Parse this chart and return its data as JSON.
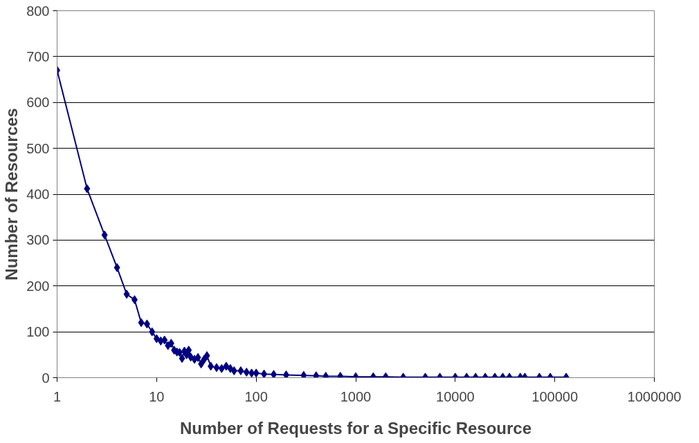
{
  "chart_data": {
    "type": "line",
    "xlabel": "Number of Requests for a Specific Resource",
    "ylabel": "Number of Resources",
    "log": "x",
    "xlim": [
      1,
      1000000
    ],
    "xticks": [
      1,
      10,
      100,
      1000,
      10000,
      100000,
      1000000
    ],
    "ylim": [
      0,
      800
    ],
    "yticks": [
      0,
      100,
      200,
      300,
      400,
      500,
      600,
      700,
      800
    ],
    "grid": "y",
    "marker": "diamond",
    "line_style": "solid",
    "series": [
      {
        "color": "#000080",
        "x": [
          1,
          2,
          3,
          4,
          5,
          6,
          7,
          8,
          9,
          10,
          11,
          12,
          13,
          14,
          15,
          16,
          17,
          18,
          19,
          20,
          21,
          22,
          24,
          26,
          28,
          30,
          32,
          35,
          40,
          45,
          50,
          55,
          60,
          70,
          80,
          90,
          100,
          120,
          150,
          200,
          300,
          400,
          500,
          700,
          1000,
          1500,
          2000,
          3000,
          5000,
          7000,
          10000,
          13000,
          16000,
          20000,
          25000,
          30000,
          35000,
          45000,
          50000,
          70000,
          90000,
          130000
        ],
        "values": [
          670,
          412,
          311,
          240,
          182,
          170,
          120,
          117,
          100,
          85,
          80,
          82,
          70,
          75,
          60,
          56,
          55,
          42,
          58,
          50,
          60,
          45,
          40,
          44,
          30,
          40,
          48,
          25,
          22,
          20,
          25,
          20,
          15,
          15,
          12,
          10,
          10,
          8,
          7,
          6,
          5,
          4,
          3,
          3,
          2,
          2,
          2,
          1,
          1,
          1,
          1,
          1,
          1,
          1,
          1,
          1,
          1,
          1,
          1,
          1,
          1,
          1
        ]
      }
    ]
  }
}
